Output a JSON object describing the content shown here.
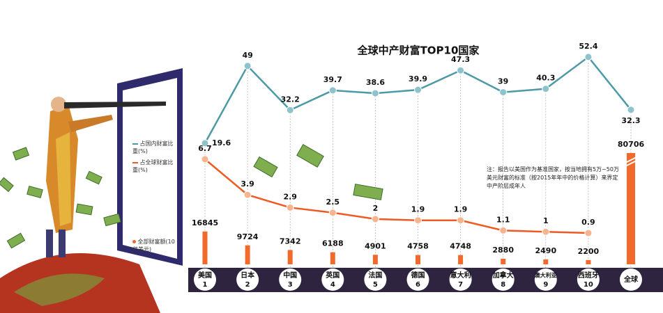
{
  "chart_data": {
    "type": "combo",
    "title": "全球中产财富TOP10国家",
    "categories": [
      "美国",
      "日本",
      "中国",
      "英国",
      "法国",
      "德国",
      "意大利",
      "加拿大",
      "澳大利亚",
      "西班牙",
      "全球"
    ],
    "ranks": [
      1,
      2,
      3,
      4,
      5,
      6,
      7,
      8,
      9,
      10,
      null
    ],
    "series": [
      {
        "name": "占国内财富比重(%)",
        "type": "line",
        "color": "#4b9aa6",
        "values": [
          19.6,
          49,
          32.2,
          39.7,
          38.6,
          39.9,
          47.3,
          39,
          40.3,
          52.4,
          32.3
        ]
      },
      {
        "name": "占全球财富比重(%)",
        "type": "line",
        "color": "#f05a22",
        "values": [
          6.7,
          3.9,
          2.9,
          2.5,
          2,
          1.9,
          1.9,
          1.1,
          1,
          0.9,
          null
        ]
      },
      {
        "name": "全部财富额(10亿美元)",
        "type": "bar",
        "color": "#f26a2b",
        "values": [
          16845,
          9724,
          7342,
          6188,
          4901,
          4758,
          4748,
          2880,
          2490,
          2200,
          80706
        ]
      }
    ],
    "note": "注：报告以美国作为基准国家，按当地拥有5万~50万美元财富的标准（按2015年年中的价格计算）来界定中产阶层成年人"
  }
}
